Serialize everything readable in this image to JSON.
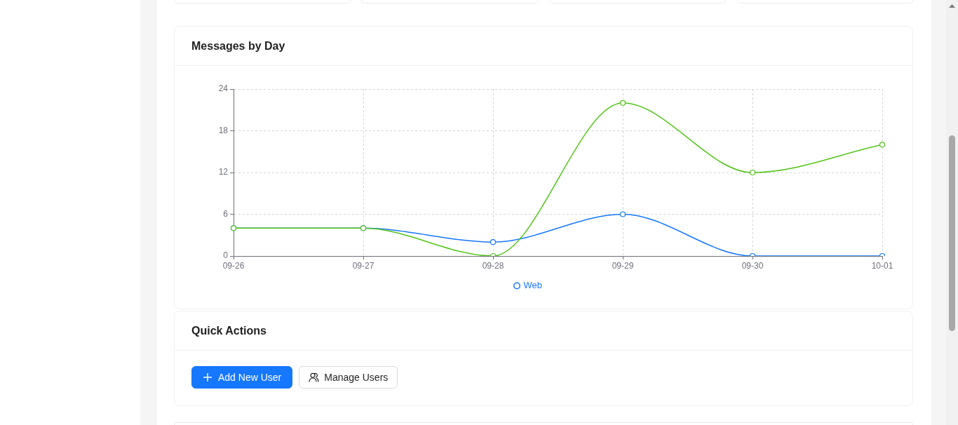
{
  "chart_data": [
    {
      "type": "line",
      "title": "Messages by Day",
      "categories": [
        "09-26",
        "09-27",
        "09-28",
        "09-29",
        "09-30",
        "10-01"
      ],
      "series": [
        {
          "name": "Web",
          "color": "#1677ff",
          "values": [
            4,
            4,
            2,
            6,
            0,
            0
          ]
        },
        {
          "color": "#52c41a",
          "values": [
            4,
            4,
            0,
            22,
            12,
            16
          ]
        }
      ],
      "ylim": [
        0,
        24
      ],
      "yticks": [
        0,
        6,
        12,
        18,
        24
      ],
      "grid": true,
      "legend": "bottom",
      "marker": "circle",
      "line_style": "solid"
    },
    {
      "type": "other",
      "title": "Quick Actions",
      "annotations": [
        "Add New User",
        "Manage Users"
      ]
    }
  ]
}
